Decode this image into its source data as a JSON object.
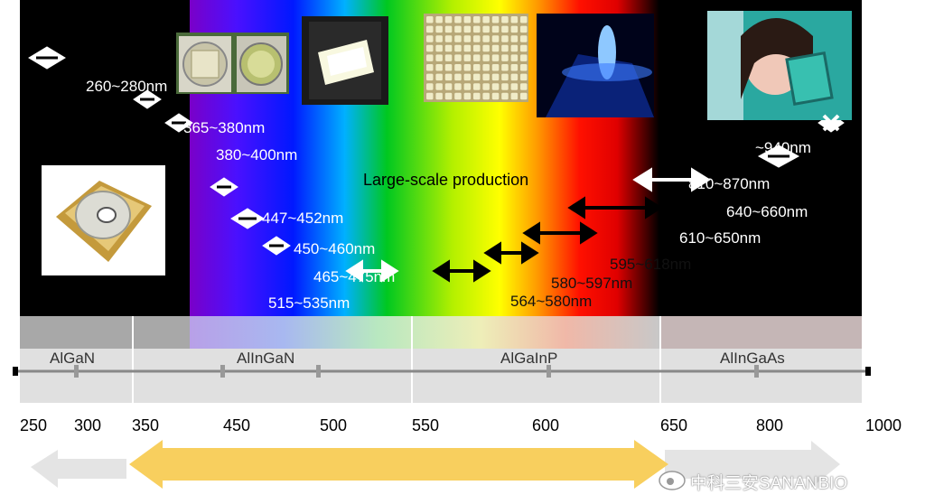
{
  "headline": "Large-scale production",
  "ranges": [
    {
      "text": "260~280nm",
      "color": "white"
    },
    {
      "text": "365~380nm",
      "color": "white"
    },
    {
      "text": "380~400nm",
      "color": "white"
    },
    {
      "text": "447~452nm",
      "color": "white"
    },
    {
      "text": "450~460nm",
      "color": "white"
    },
    {
      "text": "465~475nm",
      "color": "white"
    },
    {
      "text": "515~535nm",
      "color": "white"
    },
    {
      "text": "564~580nm",
      "color": "black"
    },
    {
      "text": "580~597nm",
      "color": "black"
    },
    {
      "text": "595~618nm",
      "color": "black"
    },
    {
      "text": "610~650nm",
      "color": "white"
    },
    {
      "text": "640~660nm",
      "color": "white"
    },
    {
      "text": "810~870nm",
      "color": "white"
    },
    {
      "text": "~940nm",
      "color": "white"
    }
  ],
  "materials": [
    "AlGaN",
    "AlInGaN",
    "AlGaInP",
    "AlInGaAs"
  ],
  "scale": [
    "250",
    "300",
    "350",
    "450",
    "500",
    "550",
    "600",
    "650",
    "800",
    "1000"
  ],
  "watermark": "中科三安SANANBIO",
  "colors": {
    "yellow_arrow": "#f8cf5e",
    "gray_arrow": "#e4e4e4",
    "band_bg": "#000000"
  }
}
